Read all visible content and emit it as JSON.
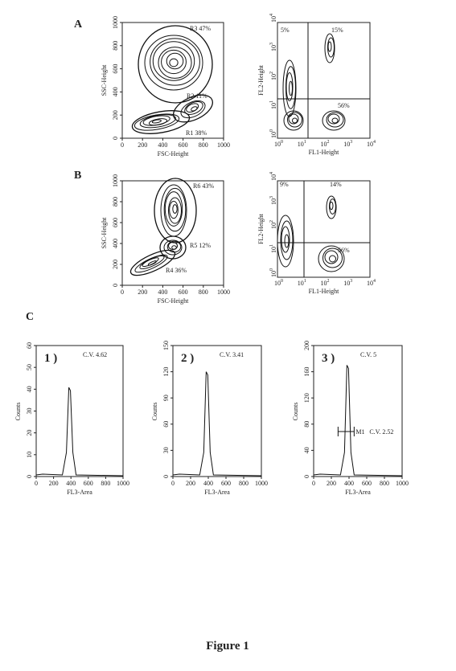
{
  "panel_labels": [
    "A",
    "B",
    "C"
  ],
  "scatter_plots": [
    {
      "x_label": "FSC-Height",
      "y_label": "SSC-Height",
      "x_ticks": [
        0,
        200,
        400,
        600,
        800,
        1000
      ],
      "y_ticks": [
        0,
        200,
        400,
        600,
        800,
        1000
      ],
      "regions": [
        "R3 47%",
        "R2 11%",
        "R1 38%"
      ]
    },
    {
      "x_label": "FSC-Height",
      "y_label": "SSC-Height",
      "x_ticks": [
        0,
        200,
        400,
        600,
        800,
        1000
      ],
      "y_ticks": [
        0,
        200,
        400,
        600,
        800,
        1000
      ],
      "regions": [
        "R6 43%",
        "R5 12%",
        "R4 36%"
      ]
    }
  ],
  "quadrant_plots": [
    {
      "x_label": "FL1-Height",
      "y_label": "FL2-Height",
      "tick_base": "10",
      "tick_exponents": [
        "0",
        "1",
        "2",
        "3",
        "4"
      ],
      "quadrants": [
        "5%",
        "15%",
        "56%"
      ]
    },
    {
      "x_label": "FL1-Height",
      "y_label": "FL2-Height",
      "tick_base": "10",
      "tick_exponents": [
        "0",
        "1",
        "2",
        "3",
        "4"
      ],
      "quadrants": [
        "9%",
        "14%",
        "56%"
      ]
    }
  ],
  "histograms": [
    {
      "title": "1 )",
      "cv": "C.V. 4.62",
      "x_label": "FL3-Area",
      "y_label": "Counts",
      "x_ticks": [
        0,
        200,
        400,
        600,
        800,
        1000
      ],
      "y_ticks": [
        0,
        10,
        20,
        30,
        40,
        50,
        60
      ]
    },
    {
      "title": "2 )",
      "cv": "C.V. 3.41",
      "x_label": "FL3-Area",
      "y_label": "Counts",
      "x_ticks": [
        0,
        200,
        400,
        600,
        800,
        1000
      ],
      "y_ticks": [
        0,
        30,
        60,
        90,
        120,
        150
      ]
    },
    {
      "title": "3 )",
      "cv": "C.V. 5",
      "x_label": "FL3-Area",
      "y_label": "Counts",
      "x_ticks": [
        0,
        200,
        400,
        600,
        800,
        1000
      ],
      "y_ticks": [
        0,
        40,
        80,
        120,
        160,
        200
      ],
      "marker": "M1",
      "marker_cv": "C.V. 2.52"
    }
  ],
  "caption": "Figure 1"
}
